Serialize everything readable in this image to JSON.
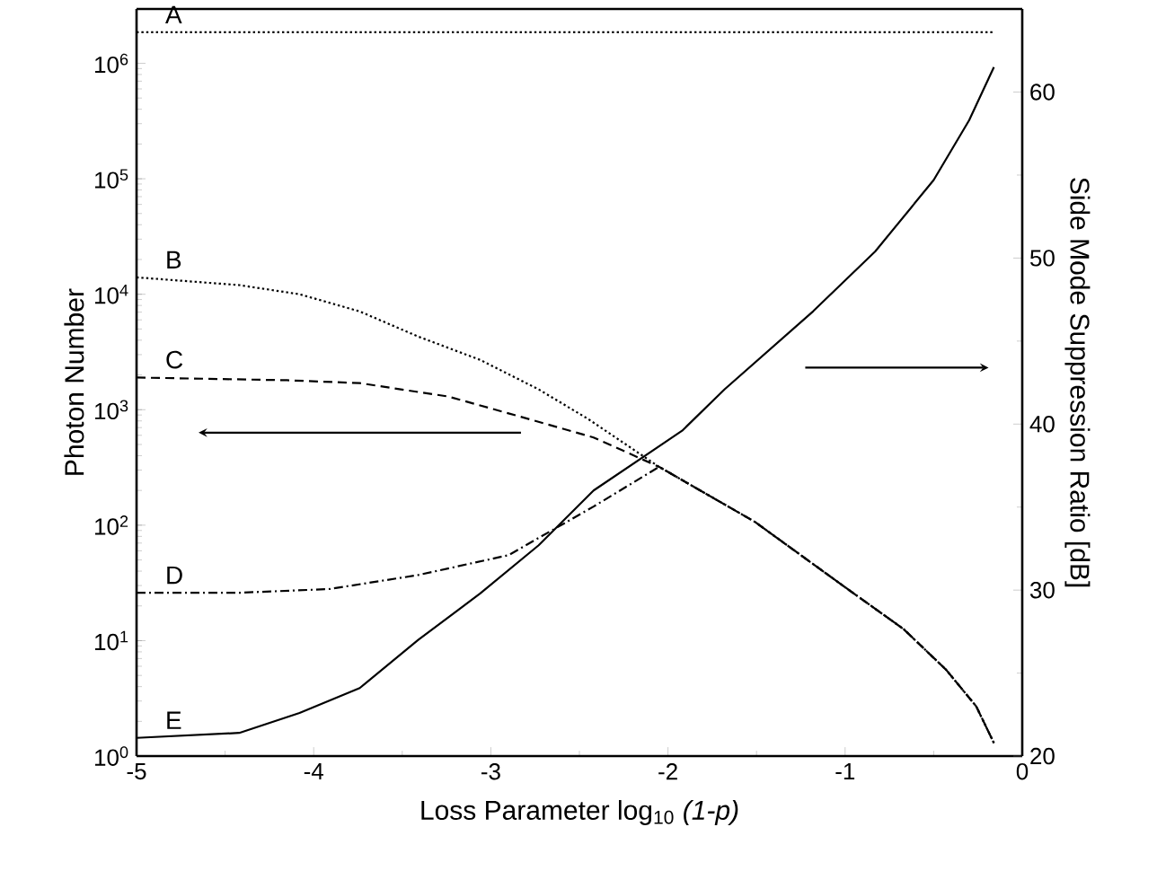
{
  "chart_data": {
    "type": "line",
    "xlabel": "Loss Parameter log$_{10}$ *(1-p)*",
    "ylabel": "Photon Number",
    "y2label": "Side Mode Suppression Ratio [dB]",
    "log": "y",
    "xlim": [
      -5,
      0
    ],
    "xticks": [
      -5,
      -4,
      -3,
      -2,
      -1,
      0
    ],
    "ylim": [
      1,
      2950000
    ],
    "yticks": [
      {
        "value": 1,
        "label": "10$^{0}$"
      },
      {
        "value": 10,
        "label": "10$^{1}$"
      },
      {
        "value": 100,
        "label": "10$^{2}$"
      },
      {
        "value": 1000,
        "label": "10$^{3}$"
      },
      {
        "value": 10000,
        "label": "10$^{4}$"
      },
      {
        "value": 100000,
        "label": "10$^{5}$"
      },
      {
        "value": 1000000,
        "label": "10$^{6}$"
      }
    ],
    "y2lim": [
      20,
      65
    ],
    "y2ticks": [
      20,
      30,
      40,
      50,
      60
    ],
    "series": [
      {
        "name": "A",
        "color": "#000000",
        "line_style": "dotted",
        "x": [
          -5,
          -0.16
        ],
        "values": [
          1860000,
          1860000
        ]
      },
      {
        "name": "B",
        "color": "#000000",
        "line_style": "dotted",
        "x": [
          -5,
          -4.42,
          -4.08,
          -3.74,
          -3.41,
          -3.06,
          -2.73,
          -2.45,
          -2.05,
          -1.51,
          -1.0,
          -0.67,
          -0.43,
          -0.26,
          -0.16
        ],
        "values": [
          14000,
          12000,
          10000,
          7100,
          4300,
          2700,
          1500,
          830,
          320,
          107,
          29,
          12.6,
          5.6,
          2.7,
          1.3
        ]
      },
      {
        "name": "C",
        "color": "#000000",
        "line_style": "dashed",
        "x": [
          -5,
          -4.15,
          -3.74,
          -3.24,
          -2.9,
          -2.42,
          -2.05,
          -1.51,
          -1.0,
          -0.67,
          -0.43,
          -0.26,
          -0.16
        ],
        "values": [
          1900,
          1800,
          1700,
          1300,
          930,
          575,
          320,
          107,
          29,
          12.6,
          5.6,
          2.7,
          1.3
        ]
      },
      {
        "name": "D",
        "color": "#000000",
        "line_style": "dashdot",
        "x": [
          -5,
          -4.42,
          -3.91,
          -3.41,
          -2.9,
          -2.42,
          -2.05,
          -1.51,
          -1.0,
          -0.67,
          -0.43,
          -0.26,
          -0.16
        ],
        "values": [
          26,
          26,
          28,
          37,
          55,
          145,
          320,
          107,
          29,
          12.6,
          5.6,
          2.7,
          1.3
        ]
      },
      {
        "name": "E",
        "color": "#000000",
        "line_style": "solid",
        "axis": "y2",
        "x": [
          -5,
          -4.42,
          -4.08,
          -3.74,
          -3.41,
          -3.06,
          -2.73,
          -2.42,
          -1.92,
          -1.68,
          -1.18,
          -0.83,
          -0.5,
          -0.3,
          -0.16
        ],
        "values": [
          21.1,
          21.4,
          22.6,
          24.1,
          27.0,
          29.8,
          32.7,
          36.0,
          39.6,
          42.1,
          46.8,
          50.4,
          54.7,
          58.3,
          61.5
        ]
      }
    ]
  }
}
